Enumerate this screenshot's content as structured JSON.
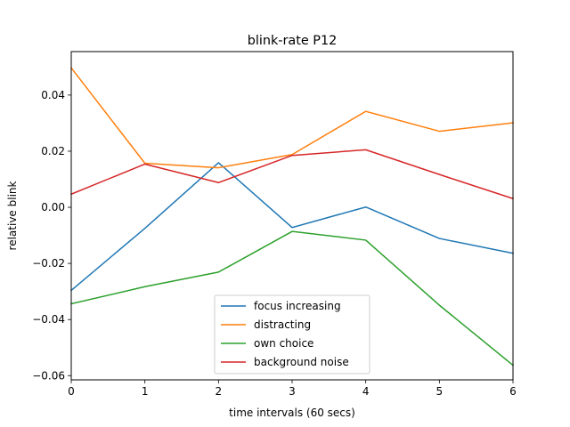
{
  "chart_data": {
    "type": "line",
    "title": "blink-rate P12",
    "xlabel": "time intervals (60 secs)",
    "ylabel": "relative blink",
    "x": [
      0,
      1,
      2,
      3,
      4,
      5,
      6
    ],
    "xlim": [
      0,
      6
    ],
    "ylim": [
      -0.0615,
      0.0555
    ],
    "xticks": [
      0,
      1,
      2,
      3,
      4,
      5,
      6
    ],
    "yticks": [
      -0.06,
      -0.04,
      -0.02,
      0.0,
      0.02,
      0.04
    ],
    "ytick_labels": [
      "−0.06",
      "−0.04",
      "−0.02",
      "0.00",
      "0.02",
      "0.04"
    ],
    "grid": false,
    "legend_position": "lower center",
    "series": [
      {
        "name": "focus increasing",
        "color": "#1f77b4",
        "values": [
          -0.0296,
          -0.0075,
          0.0159,
          -0.0072,
          0.0001,
          -0.0111,
          -0.0164
        ]
      },
      {
        "name": "distracting",
        "color": "#ff7f0e",
        "values": [
          0.0497,
          0.0157,
          0.0141,
          0.0188,
          0.0342,
          0.0271,
          0.0301
        ]
      },
      {
        "name": "own choice",
        "color": "#2ca02c",
        "values": [
          -0.0344,
          -0.0283,
          -0.0231,
          -0.0086,
          -0.0117,
          -0.0349,
          -0.0563
        ]
      },
      {
        "name": "background noise",
        "color": "#d62728",
        "values": [
          0.0047,
          0.0154,
          0.0088,
          0.0185,
          0.0205,
          0.0117,
          0.0031
        ]
      }
    ]
  }
}
